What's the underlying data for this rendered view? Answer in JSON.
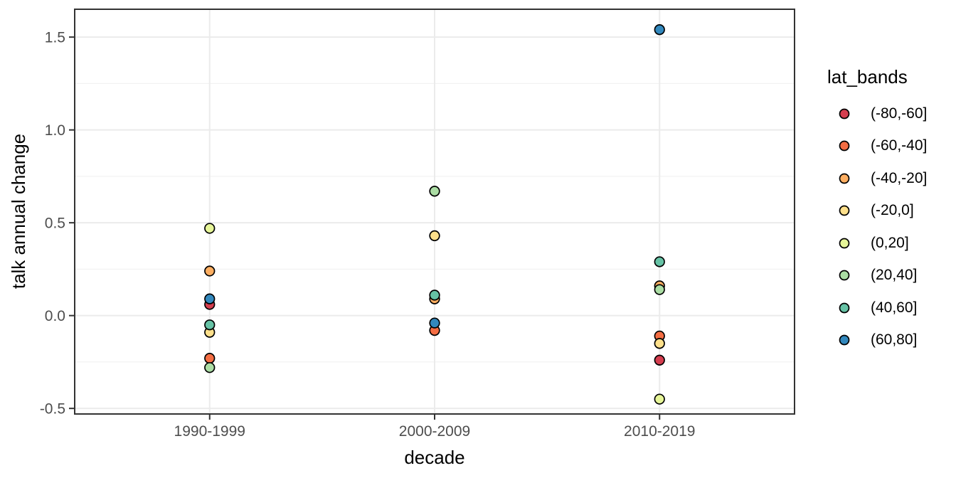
{
  "figure": {
    "background": "#ffffff"
  },
  "chart_data": {
    "type": "scatter",
    "title": "",
    "xlabel": "decade",
    "ylabel": "talk annual change",
    "categories": [
      "1990-1999",
      "2000-2009",
      "2010-2019"
    ],
    "y_ticks": [
      -0.5,
      0.0,
      0.5,
      1.0,
      1.5
    ],
    "y_tick_labels": [
      "-0.5",
      "0.0",
      "0.5",
      "1.0",
      "1.5"
    ],
    "ylim": [
      -0.53,
      1.65
    ],
    "grid": "major and minor horizontal grey lines, vertical grey line at each category, white panel, dark grey panel border",
    "legend": {
      "title": "lat_bands",
      "position": "right"
    },
    "style": {
      "panel_background": "#ffffff",
      "panel_border_color": "#333333",
      "grid_color": "#ebebeb",
      "minor_grid_color": "#efefef",
      "tick_mark_color": "#333333",
      "tick_label_color": "#4d4d4d",
      "point_outline_color": "#000000"
    },
    "series": [
      {
        "name": "(-80,-60]",
        "color": "#d53e4f",
        "values": [
          0.06,
          null,
          -0.24
        ]
      },
      {
        "name": "(-60,-40]",
        "color": "#f46d43",
        "values": [
          -0.23,
          -0.08,
          -0.11
        ]
      },
      {
        "name": "(-40,-20]",
        "color": "#fdae61",
        "values": [
          0.24,
          0.09,
          0.16
        ]
      },
      {
        "name": "(-20,0]",
        "color": "#fee08b",
        "values": [
          -0.09,
          0.43,
          -0.15
        ]
      },
      {
        "name": "(0,20]",
        "color": "#e6f598",
        "values": [
          0.47,
          null,
          -0.45
        ]
      },
      {
        "name": "(20,40]",
        "color": "#abdda4",
        "values": [
          -0.28,
          0.67,
          0.14
        ]
      },
      {
        "name": "(40,60]",
        "color": "#66c2a5",
        "values": [
          -0.05,
          0.11,
          0.29
        ]
      },
      {
        "name": "(60,80]",
        "color": "#3288bd",
        "values": [
          0.09,
          -0.04,
          1.54
        ]
      }
    ]
  }
}
